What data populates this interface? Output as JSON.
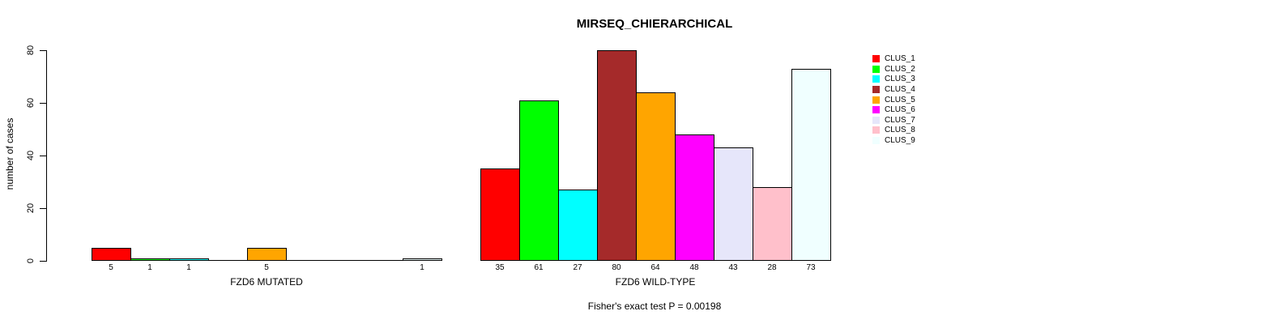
{
  "title": "MIRSEQ_CHIERARCHICAL",
  "caption": "Fisher's exact test P = 0.00198",
  "chart_data": {
    "type": "bar",
    "title": "MIRSEQ_CHIERARCHICAL",
    "ylabel": "number of cases",
    "xlabel": "",
    "ylim": [
      0,
      80
    ],
    "yticks": [
      0,
      20,
      40,
      60,
      80
    ],
    "grid": false,
    "legend_position": "top-right",
    "bar_outline_color": "#000000",
    "axis_color": "#000000",
    "background_color": "#ffffff",
    "categories": [
      "FZD6 MUTATED",
      "FZD6 WILD-TYPE"
    ],
    "series": [
      {
        "name": "CLUS_1",
        "color": "#FF0000",
        "values": [
          5,
          35
        ]
      },
      {
        "name": "CLUS_2",
        "color": "#00FF00",
        "values": [
          1,
          61
        ]
      },
      {
        "name": "CLUS_3",
        "color": "#00FFFF",
        "values": [
          1,
          27
        ]
      },
      {
        "name": "CLUS_4",
        "color": "#A52A2A",
        "values": [
          0,
          80
        ]
      },
      {
        "name": "CLUS_5",
        "color": "#FFA500",
        "values": [
          5,
          64
        ]
      },
      {
        "name": "CLUS_6",
        "color": "#FF00FF",
        "values": [
          0,
          48
        ]
      },
      {
        "name": "CLUS_7",
        "color": "#E6E6FA",
        "values": [
          0,
          43
        ]
      },
      {
        "name": "CLUS_8",
        "color": "#FFC0CB",
        "values": [
          0,
          28
        ]
      },
      {
        "name": "CLUS_9",
        "color": "#F0FFFF",
        "values": [
          1,
          73
        ]
      }
    ],
    "annotation": "Fisher's exact test P = 0.00198"
  }
}
